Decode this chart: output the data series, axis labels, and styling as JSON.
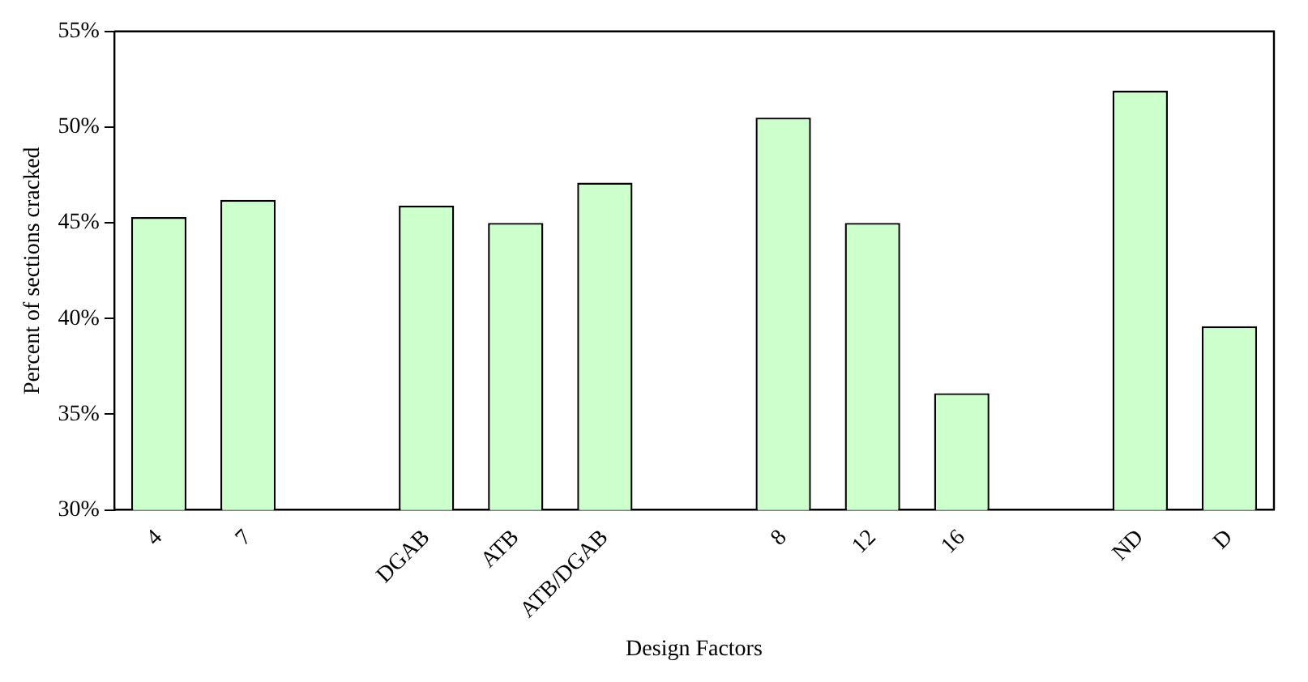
{
  "chart_data": {
    "type": "bar",
    "xlabel": "Design Factors",
    "ylabel": "Percent of sections cracked",
    "categories": [
      "4",
      "7",
      null,
      "DGAB",
      "ATB",
      "ATB/DGAB",
      null,
      "8",
      "12",
      "16",
      null,
      "ND",
      "D"
    ],
    "values": [
      45.3,
      46.2,
      null,
      45.9,
      45.0,
      47.1,
      null,
      50.5,
      45.0,
      36.1,
      null,
      51.9,
      39.6
    ],
    "color": "#ccffcc",
    "ylim": [
      30,
      55
    ],
    "yticks": [
      {
        "value": 30,
        "label": "30%"
      },
      {
        "value": 35,
        "label": "35%"
      },
      {
        "value": 40,
        "label": "40%"
      },
      {
        "value": 45,
        "label": "45%"
      },
      {
        "value": 50,
        "label": "50%"
      },
      {
        "value": 55,
        "label": "55%"
      }
    ],
    "grid": false,
    "legend": false
  }
}
